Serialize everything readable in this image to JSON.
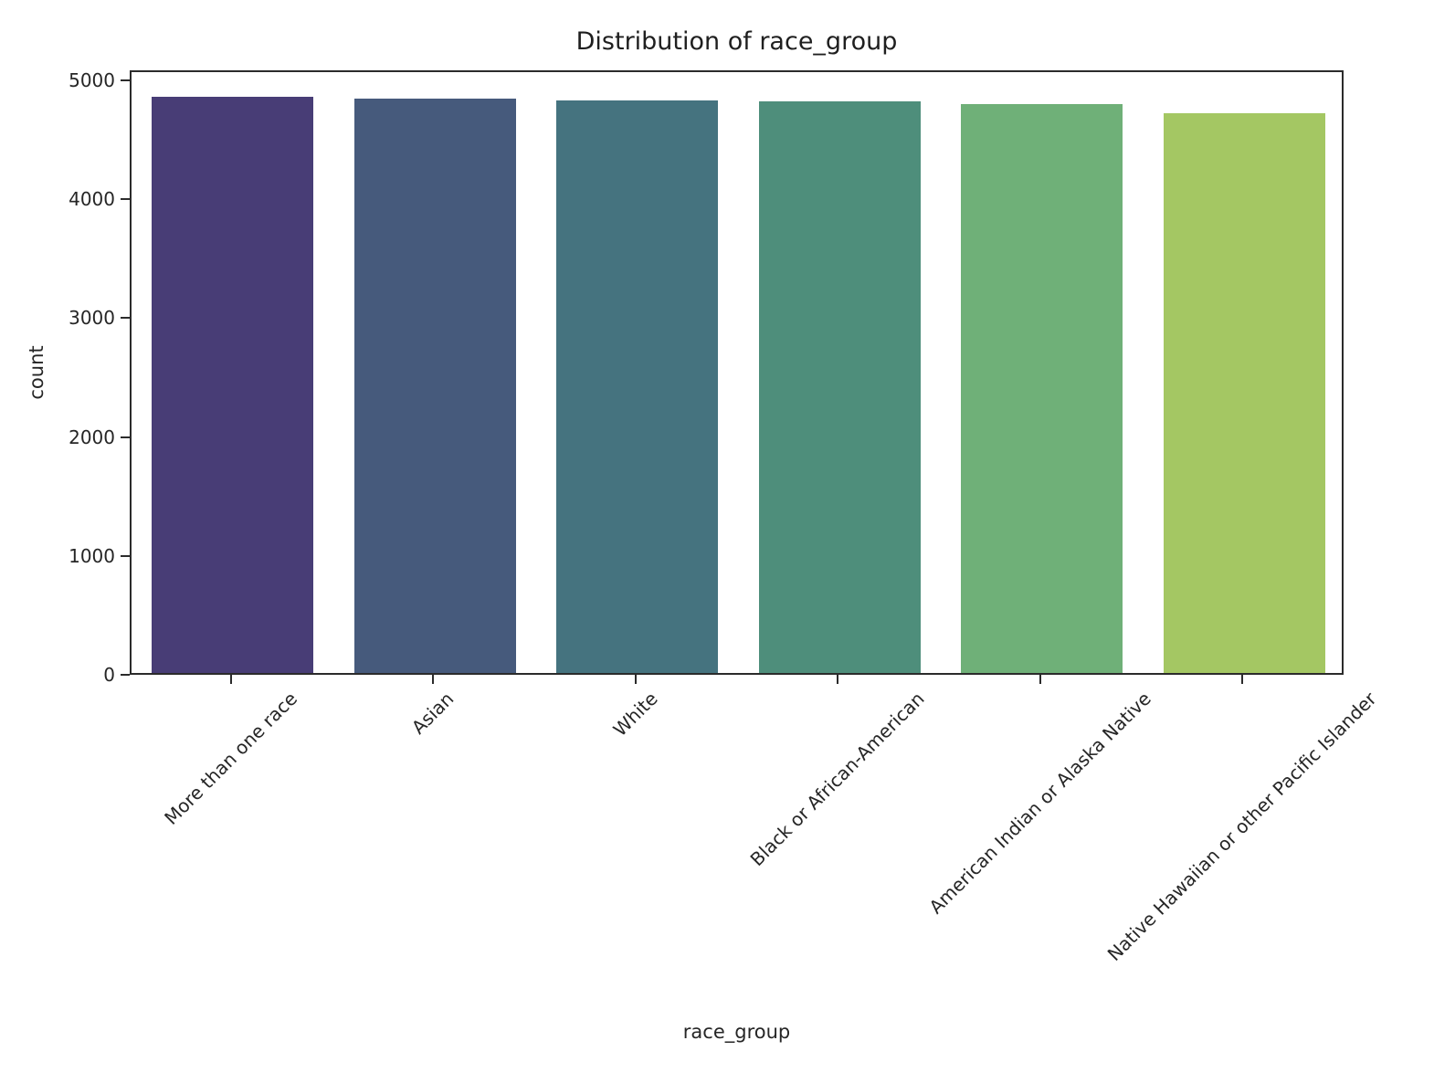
{
  "chart_data": {
    "type": "bar",
    "title": "Distribution of race_group",
    "xlabel": "race_group",
    "ylabel": "count",
    "categories": [
      "More than one race",
      "Asian",
      "White",
      "Black or African-American",
      "American Indian or Alaska Native",
      "Native Hawaiian or other Pacific Islander"
    ],
    "values": [
      4845,
      4830,
      4820,
      4805,
      4785,
      4705
    ],
    "bar_colors": [
      "#483d76",
      "#465a7c",
      "#45737f",
      "#4e8e7b",
      "#6fb078",
      "#a4c763"
    ],
    "yticks": [
      0,
      1000,
      2000,
      3000,
      4000,
      5000
    ],
    "ylim": [
      0,
      5085
    ],
    "bar_width_fraction": 0.8,
    "xtick_rotation_deg": 45,
    "grid": false,
    "legend": "none"
  },
  "styles": {
    "background": "#ffffff",
    "axis_color": "#2b2b2b",
    "text_color": "#262626"
  }
}
